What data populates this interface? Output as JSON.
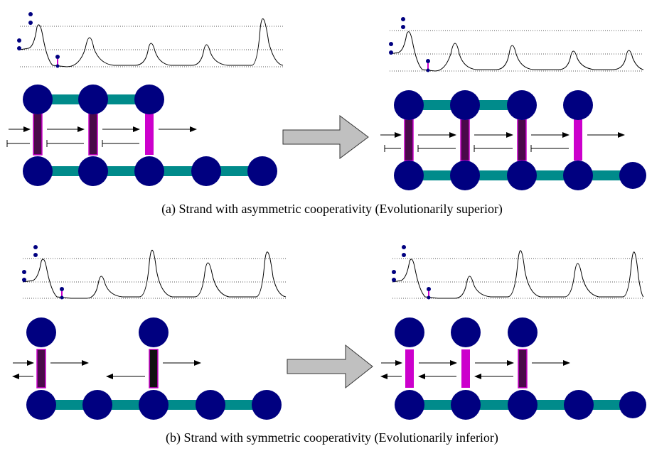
{
  "captions": {
    "a": "(a) Strand with asymmetric cooperativity (Evolutionarily superior)",
    "b": "(b) Strand with symmetric cooperativity (Evolutionarily inferior)"
  },
  "colors": {
    "node": "#000080",
    "backbone": "#008b8b",
    "rung_active": "#cc00cc",
    "rung_dark": "#4a0a4a",
    "rung_black": "#111111",
    "arrow_fill": "#c0c0c0",
    "trace": "#000000",
    "dotted": "#555555"
  },
  "icons": {
    "big_arrow": "right-arrow-icon",
    "node": "circle-node-icon"
  }
}
